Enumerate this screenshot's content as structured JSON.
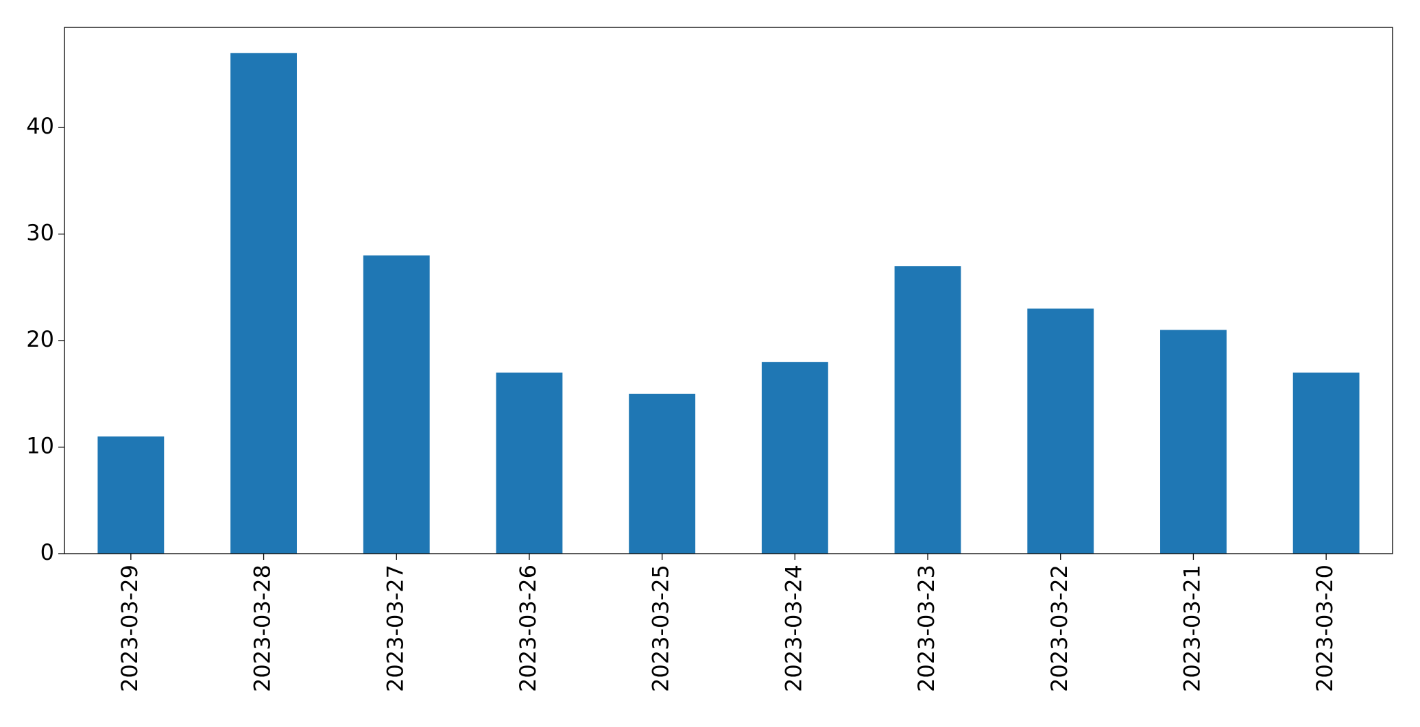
{
  "chart_data": {
    "type": "bar",
    "categories": [
      "2023-03-29",
      "2023-03-28",
      "2023-03-27",
      "2023-03-26",
      "2023-03-25",
      "2023-03-24",
      "2023-03-23",
      "2023-03-22",
      "2023-03-21",
      "2023-03-20"
    ],
    "values": [
      11,
      47,
      28,
      17,
      15,
      18,
      27,
      23,
      21,
      17
    ],
    "color": "#1f77b4",
    "ylim": [
      0,
      49.4
    ],
    "yticks": [
      0,
      10,
      20,
      30,
      40
    ],
    "grid": false
  }
}
